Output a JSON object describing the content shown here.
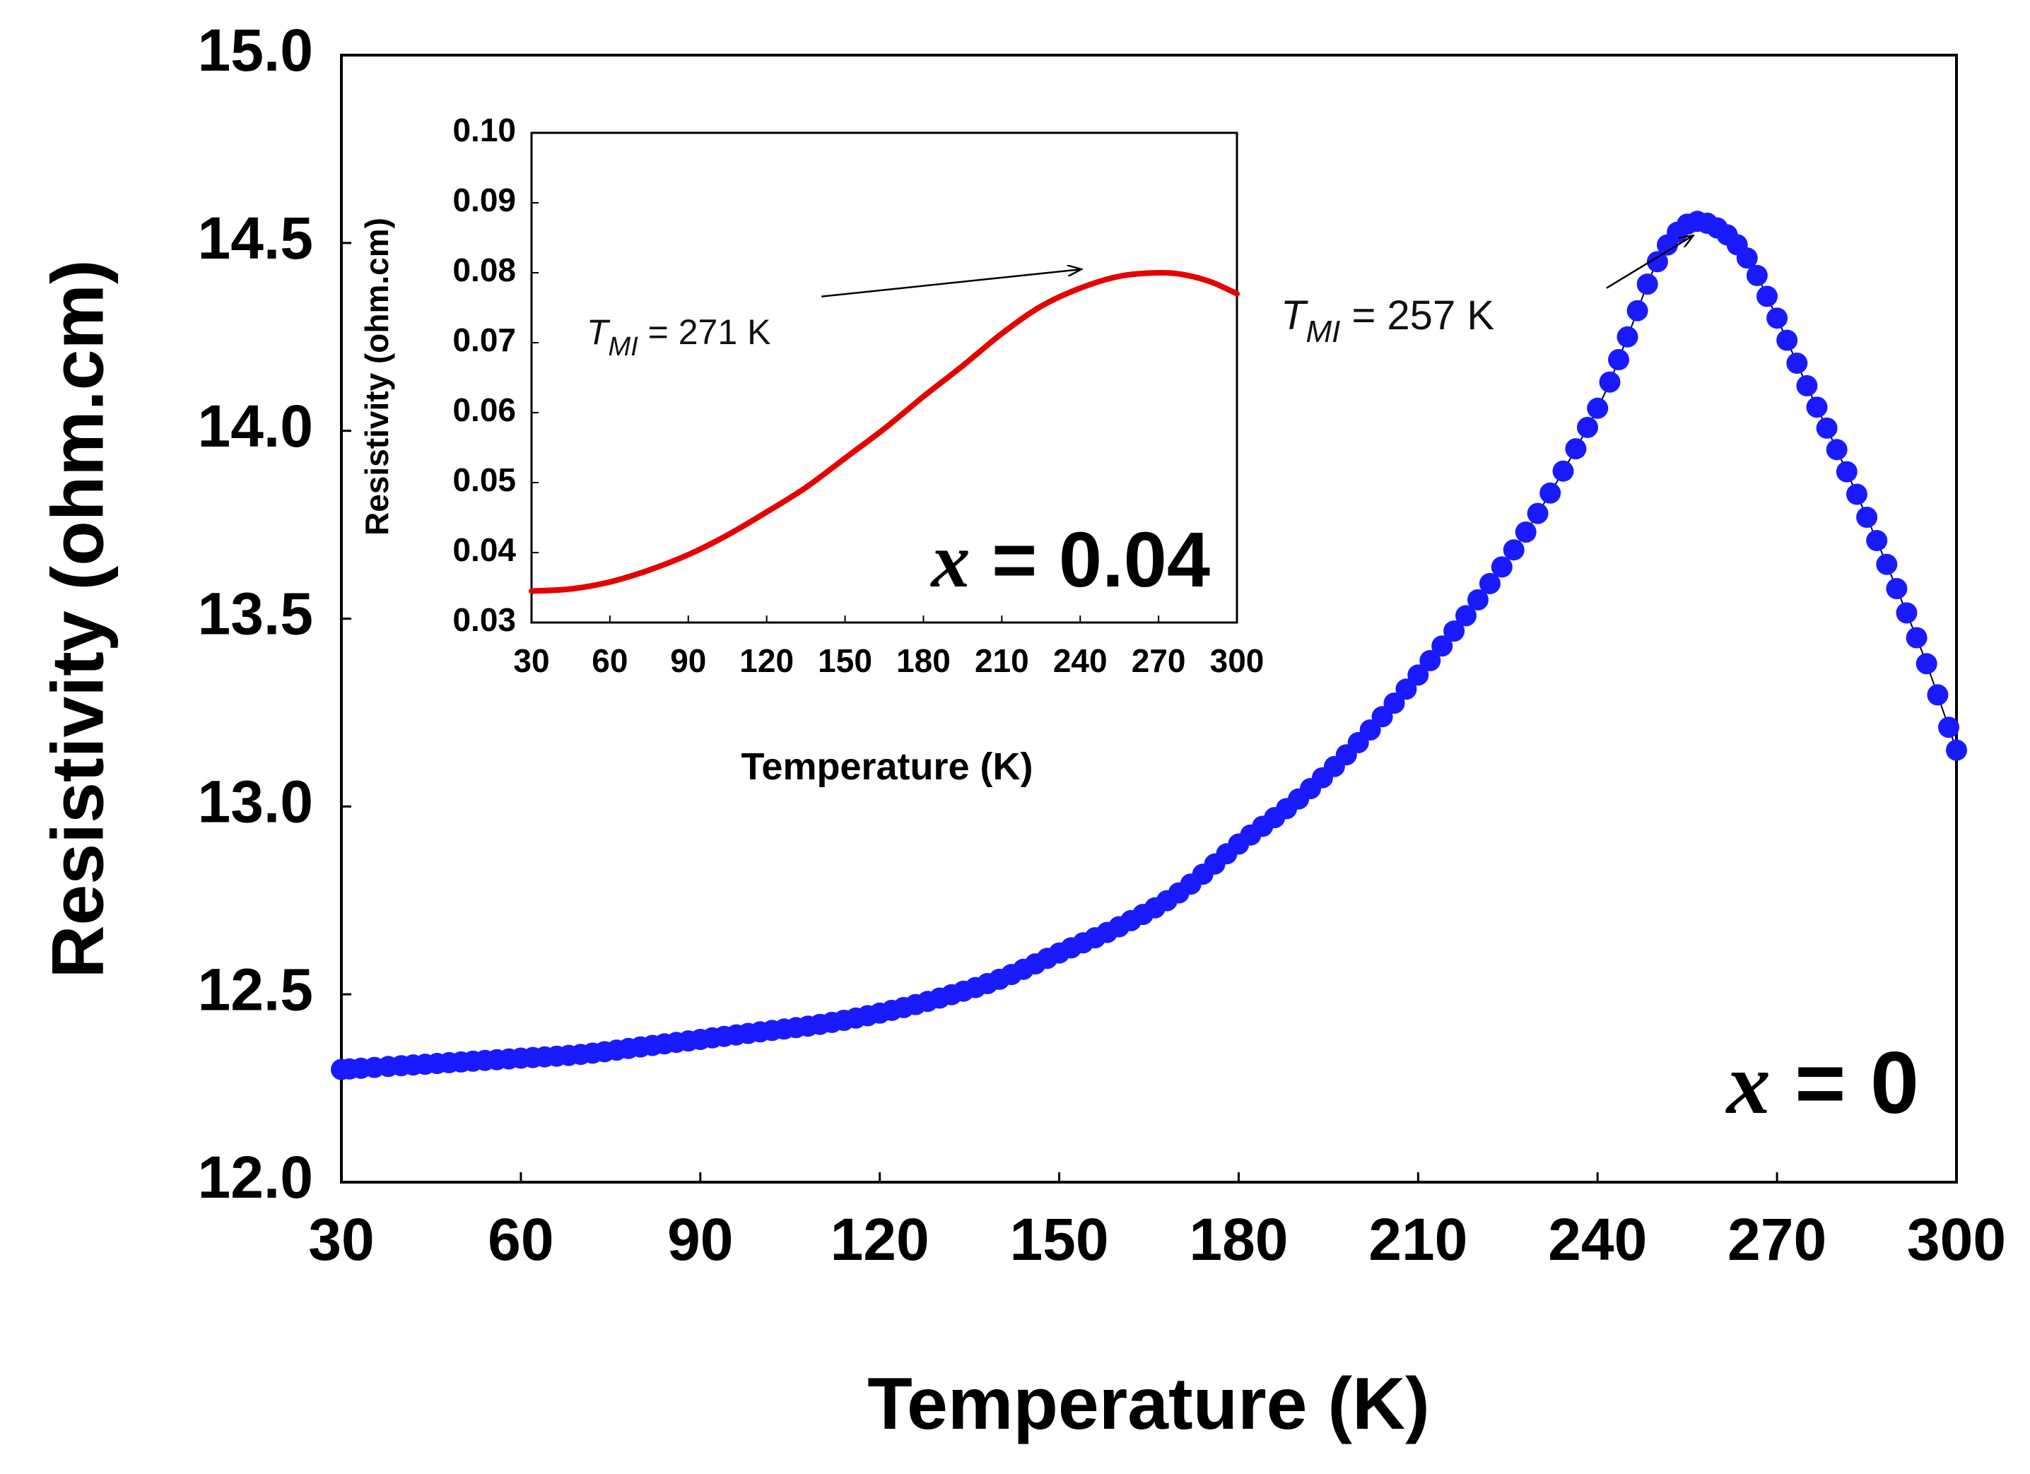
{
  "chart_data": [
    {
      "type": "scatter",
      "series_name": "x = 0",
      "label_var": "x",
      "label_rest": " = 0",
      "xlabel": "Temperature (K)",
      "ylabel": "Resistivity (ohm.cm)",
      "xlim": [
        30,
        300
      ],
      "ylim": [
        12.0,
        15.0
      ],
      "xticks": [
        30,
        60,
        90,
        120,
        150,
        180,
        210,
        240,
        270,
        300
      ],
      "yticks": [
        "12.0",
        "12.5",
        "13.0",
        "13.5",
        "14.0",
        "14.5",
        "15.0"
      ],
      "marker_color": "#1a1aff",
      "curve": [
        [
          30,
          12.3
        ],
        [
          40,
          12.31
        ],
        [
          50,
          12.32
        ],
        [
          60,
          12.33
        ],
        [
          70,
          12.34
        ],
        [
          80,
          12.36
        ],
        [
          90,
          12.38
        ],
        [
          100,
          12.4
        ],
        [
          110,
          12.42
        ],
        [
          120,
          12.45
        ],
        [
          130,
          12.49
        ],
        [
          140,
          12.54
        ],
        [
          150,
          12.61
        ],
        [
          160,
          12.68
        ],
        [
          170,
          12.77
        ],
        [
          180,
          12.9
        ],
        [
          190,
          13.02
        ],
        [
          200,
          13.17
        ],
        [
          210,
          13.35
        ],
        [
          220,
          13.55
        ],
        [
          230,
          13.78
        ],
        [
          240,
          14.06
        ],
        [
          245,
          14.25
        ],
        [
          250,
          14.45
        ],
        [
          255,
          14.55
        ],
        [
          260,
          14.54
        ],
        [
          265,
          14.46
        ],
        [
          270,
          14.3
        ],
        [
          275,
          14.12
        ],
        [
          280,
          13.95
        ],
        [
          285,
          13.77
        ],
        [
          290,
          13.58
        ],
        [
          295,
          13.38
        ],
        [
          300,
          13.15
        ]
      ],
      "annotation": {
        "sym": "T",
        "sub": "MI",
        "rest": " = 257 K",
        "arrow_from": [
          241.5,
          14.38
        ],
        "arrow_to": [
          256,
          14.52
        ]
      }
    },
    {
      "type": "line",
      "series_name": "x = 0.04",
      "label_var": "x",
      "label_rest": " = 0.04",
      "xlabel": "Temperature (K)",
      "ylabel": "Resistivity (ohm.cm)",
      "xlim": [
        30,
        300
      ],
      "ylim": [
        0.03,
        0.1
      ],
      "xticks": [
        30,
        60,
        90,
        120,
        150,
        180,
        210,
        240,
        270,
        300
      ],
      "yticks": [
        "0.03",
        "0.04",
        "0.05",
        "0.06",
        "0.07",
        "0.08",
        "0.09",
        "0.10"
      ],
      "line_color": "#e60000",
      "curve": [
        [
          30,
          0.0345
        ],
        [
          45,
          0.0348
        ],
        [
          60,
          0.0358
        ],
        [
          75,
          0.0375
        ],
        [
          90,
          0.0397
        ],
        [
          105,
          0.0425
        ],
        [
          120,
          0.0458
        ],
        [
          135,
          0.0493
        ],
        [
          150,
          0.0535
        ],
        [
          165,
          0.0577
        ],
        [
          180,
          0.0623
        ],
        [
          195,
          0.0667
        ],
        [
          210,
          0.0713
        ],
        [
          225,
          0.0752
        ],
        [
          240,
          0.0778
        ],
        [
          255,
          0.0795
        ],
        [
          270,
          0.08
        ],
        [
          280,
          0.0797
        ],
        [
          290,
          0.0787
        ],
        [
          300,
          0.077
        ]
      ],
      "annotation": {
        "sym": "T",
        "sub": "MI",
        "rest": " = 271 K",
        "arrow_from": [
          141,
          0.0766
        ],
        "arrow_to": [
          240.5,
          0.0805
        ]
      }
    }
  ]
}
